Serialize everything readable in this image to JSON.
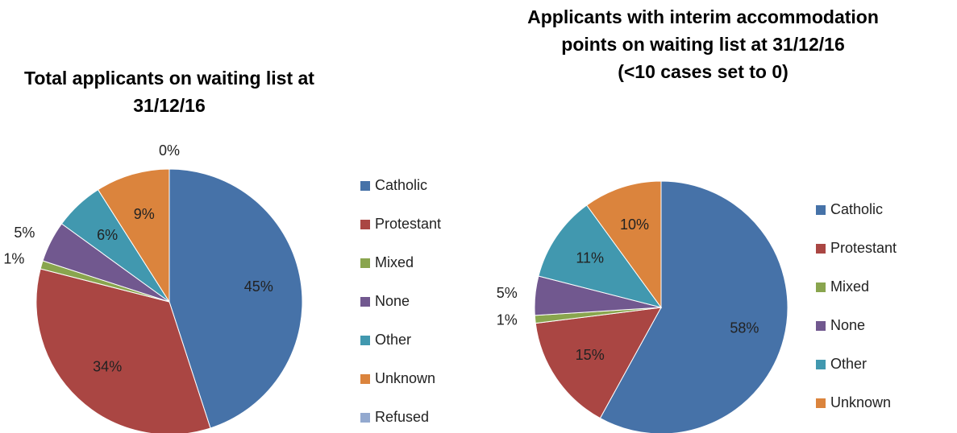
{
  "chart_data": [
    {
      "type": "pie",
      "title": "Total applicants on waiting list at 31/12/16",
      "categories": [
        "Catholic",
        "Protestant",
        "Mixed",
        "None",
        "Other",
        "Unknown",
        "Refused"
      ],
      "values": [
        45,
        34,
        1,
        5,
        6,
        9,
        0
      ],
      "value_labels": [
        "45%",
        "34%",
        "1%",
        "5%",
        "6%",
        "9%",
        "0%"
      ],
      "colors": [
        "#4672a8",
        "#aa4643",
        "#89a54e",
        "#71588f",
        "#4198af",
        "#db843d",
        "#93a9cf"
      ],
      "legend": "right"
    },
    {
      "type": "pie",
      "title": "Applicants with interim accommodation points on waiting list at 31/12/16",
      "subtitle": "(<10 cases set to 0)",
      "categories": [
        "Catholic",
        "Protestant",
        "Mixed",
        "None",
        "Other",
        "Unknown"
      ],
      "values": [
        58,
        15,
        1,
        5,
        11,
        10
      ],
      "value_labels": [
        "58%",
        "15%",
        "1%",
        "5%",
        "11%",
        "10%"
      ],
      "colors": [
        "#4672a8",
        "#aa4643",
        "#89a54e",
        "#71588f",
        "#4198af",
        "#db843d"
      ],
      "legend": "right"
    }
  ]
}
